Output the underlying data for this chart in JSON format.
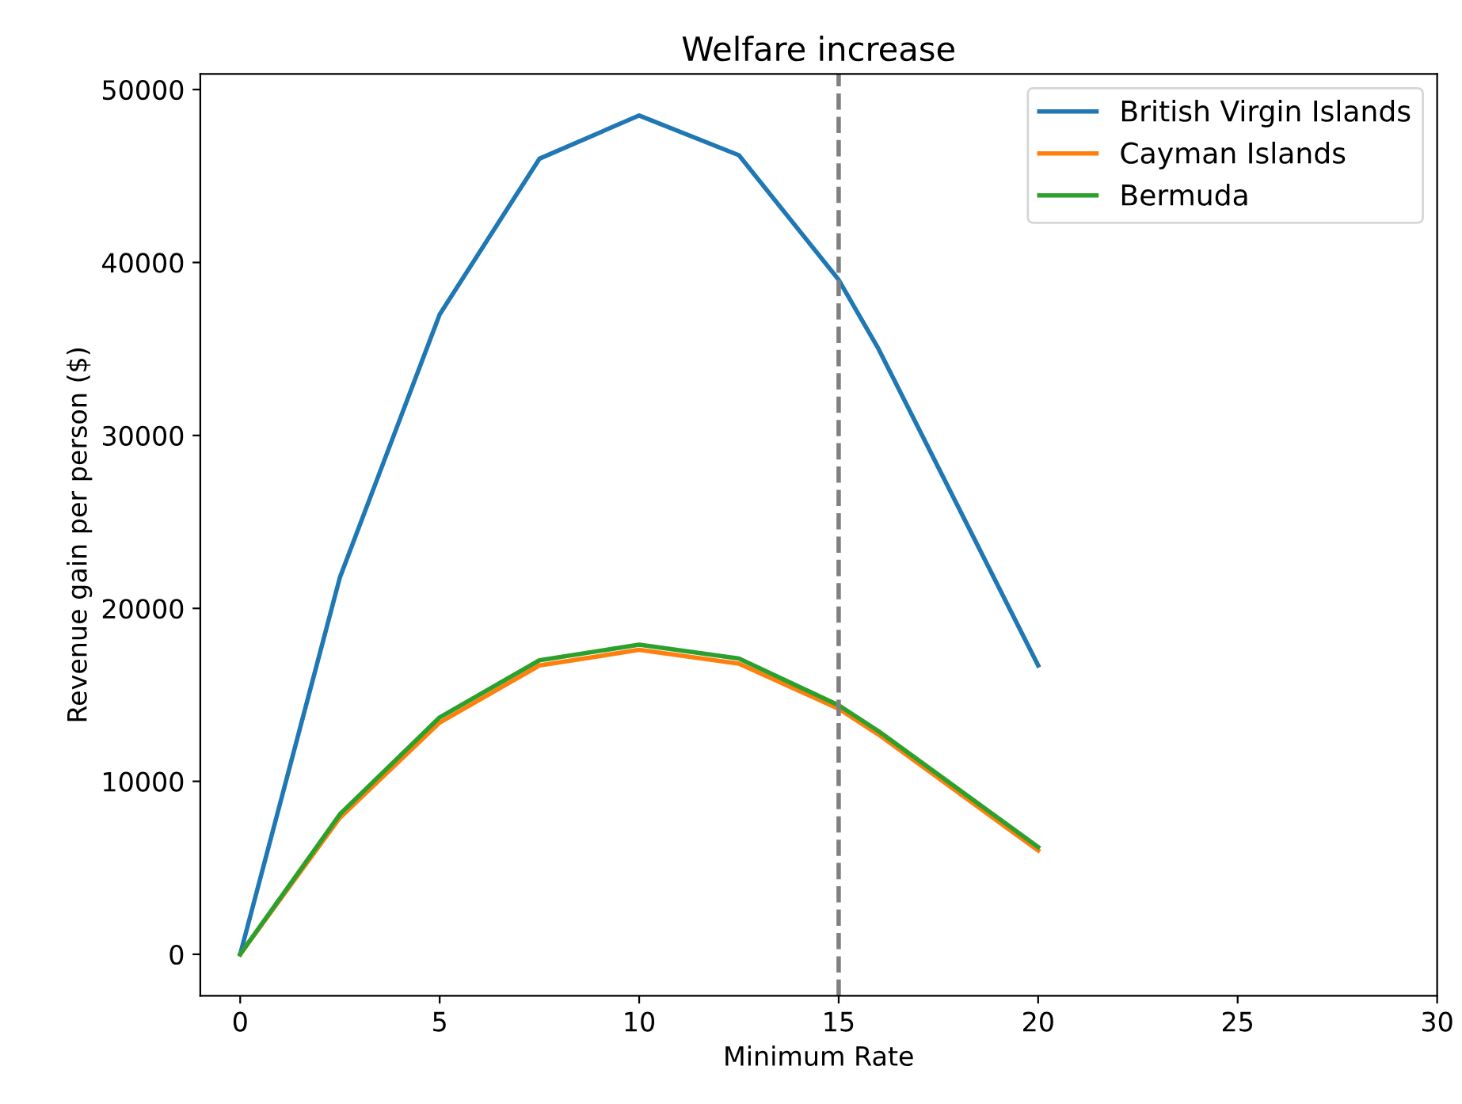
{
  "chart_data": {
    "type": "line",
    "title": "Welfare increase",
    "xlabel": "Minimum Rate",
    "ylabel": "Revenue gain per person ($)",
    "x": [
      0,
      2.5,
      5,
      7.5,
      10,
      12.5,
      15,
      16,
      20
    ],
    "series": [
      {
        "name": "British Virgin Islands",
        "color": "#1f77b4",
        "values": [
          0,
          21800,
          37000,
          46000,
          48500,
          46200,
          39000,
          35000,
          16700
        ]
      },
      {
        "name": "Cayman Islands",
        "color": "#ff7f0e",
        "values": [
          0,
          7900,
          13400,
          16700,
          17600,
          16800,
          14200,
          12700,
          6000
        ]
      },
      {
        "name": "Bermuda",
        "color": "#2ca02c",
        "values": [
          0,
          8100,
          13700,
          17000,
          17900,
          17100,
          14400,
          12900,
          6200
        ]
      }
    ],
    "xlim": [
      -1,
      30
    ],
    "xticks": [
      0,
      5,
      10,
      15,
      20,
      25,
      30
    ],
    "ylim": [
      -2400,
      50900
    ],
    "yticks": [
      0,
      10000,
      20000,
      30000,
      40000,
      50000
    ],
    "ref_lines": [
      {
        "axis": "x",
        "value": 15,
        "color": "#808080",
        "line_style": "dashed"
      }
    ],
    "grid": false,
    "legend": "top right",
    "marker": "none",
    "line_style": "solid"
  }
}
